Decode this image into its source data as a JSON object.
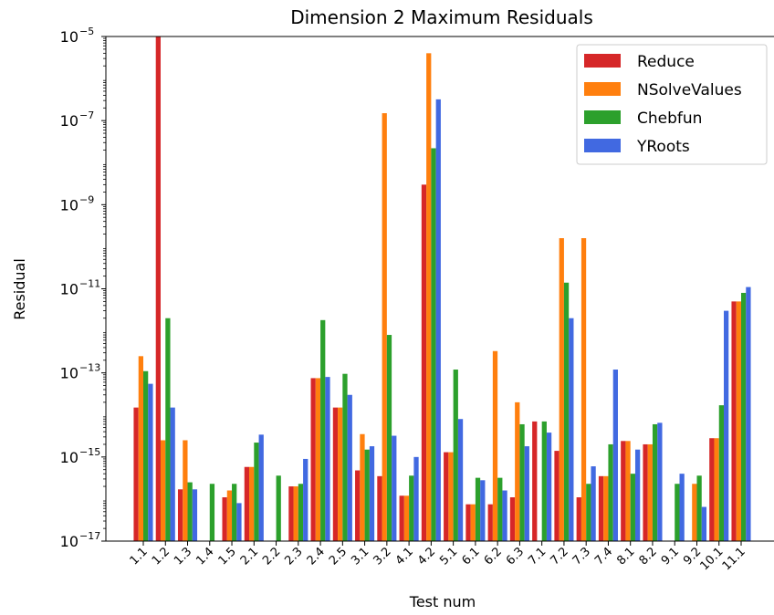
{
  "chart_data": {
    "type": "bar",
    "title": "Dimension 2 Maximum Residuals",
    "xlabel": "Test num",
    "ylabel": "Residual",
    "yscale": "log",
    "ylim": [
      1e-17,
      1e-05
    ],
    "yticks": [
      {
        "value": 1e-17,
        "base": "10",
        "exp": "−17"
      },
      {
        "value": 1e-15,
        "base": "10",
        "exp": "−15"
      },
      {
        "value": 1e-13,
        "base": "10",
        "exp": "−13"
      },
      {
        "value": 1e-11,
        "base": "10",
        "exp": "−11"
      },
      {
        "value": 1e-09,
        "base": "10",
        "exp": "−9"
      },
      {
        "value": 1e-07,
        "base": "10",
        "exp": "−7"
      },
      {
        "value": 1e-05,
        "base": "10",
        "exp": "−5"
      }
    ],
    "grid": false,
    "legend_position": "top-right",
    "categories": [
      "1.1",
      "1.2",
      "1.3",
      "1.4",
      "1.5",
      "2.1",
      "2.2",
      "2.3",
      "2.4",
      "2.5",
      "3.1",
      "3.2",
      "4.1",
      "4.2",
      "5.1",
      "6.1",
      "6.2",
      "6.3",
      "7.1",
      "7.2",
      "7.3",
      "7.4",
      "8.1",
      "8.2",
      "9.1",
      "9.2",
      "10.1",
      "11.1"
    ],
    "series": [
      {
        "name": "Reduce",
        "color": "#d62728",
        "values": [
          1.5e-14,
          1e-05,
          1.7e-16,
          null,
          1.1e-16,
          5.8e-16,
          null,
          2e-16,
          7.5e-14,
          1.5e-14,
          4.8e-16,
          3.5e-16,
          1.2e-16,
          3e-09,
          1.3e-15,
          7.5e-17,
          7.5e-17,
          1.1e-16,
          7e-15,
          1.4e-15,
          1.1e-16,
          3.5e-16,
          2.4e-15,
          2e-15,
          null,
          null,
          2.8e-15,
          5e-12
        ]
      },
      {
        "name": "NSolveValues",
        "color": "#ff7f0e",
        "values": [
          2.5e-13,
          2.5e-15,
          2.5e-15,
          null,
          1.6e-16,
          5.8e-16,
          null,
          2e-16,
          7.5e-14,
          1.5e-14,
          3.5e-15,
          1.5e-07,
          1.2e-16,
          4e-06,
          1.3e-15,
          7.5e-17,
          3.3e-13,
          2e-14,
          null,
          1.6e-10,
          1.6e-10,
          3.5e-16,
          2.4e-15,
          2e-15,
          null,
          2.3e-16,
          2.8e-15,
          5e-12
        ]
      },
      {
        "name": "Chebfun",
        "color": "#2ca02c",
        "values": [
          1.1e-13,
          2e-12,
          2.5e-16,
          2.3e-16,
          2.3e-16,
          2.2e-15,
          3.6e-16,
          2.3e-16,
          1.8e-12,
          9.5e-14,
          1.5e-15,
          8e-13,
          3.6e-16,
          2.2e-08,
          1.2e-13,
          3.2e-16,
          3.2e-16,
          6e-15,
          7e-15,
          1.4e-11,
          2.3e-16,
          2e-15,
          4e-16,
          6e-15,
          2.3e-16,
          3.6e-16,
          1.7e-14,
          8e-12
        ]
      },
      {
        "name": "YRoots",
        "color": "#4169e1",
        "values": [
          5.5e-14,
          1.5e-14,
          1.7e-16,
          null,
          8e-17,
          3.4e-15,
          null,
          9e-16,
          8e-14,
          3e-14,
          1.8e-15,
          3.2e-15,
          1e-15,
          3.2e-07,
          8e-15,
          2.8e-16,
          1.6e-16,
          1.8e-15,
          3.8e-15,
          2e-12,
          6e-16,
          1.2e-13,
          1.5e-15,
          6.5e-15,
          4e-16,
          6.5e-17,
          3e-12,
          1.1e-11
        ]
      }
    ]
  }
}
